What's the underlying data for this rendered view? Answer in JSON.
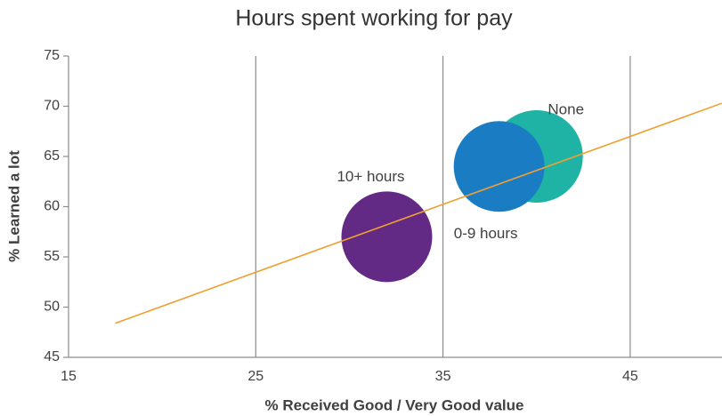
{
  "chart_data": {
    "type": "bubble",
    "title": "Hours spent working for pay",
    "x_label": "% Received Good / Very Good value",
    "y_label": "% Learned a lot",
    "series": [
      {
        "name": "None",
        "color": "#1fb3a5",
        "x": [
          40
        ],
        "values": [
          65
        ],
        "sizes": [
          52
        ]
      },
      {
        "name": "0-9 hours",
        "color": "#1a7dc4",
        "x": [
          38
        ],
        "values": [
          64
        ],
        "sizes": [
          50
        ]
      },
      {
        "name": "10+ hours",
        "color": "#622a85",
        "x": [
          32
        ],
        "values": [
          57
        ],
        "sizes": [
          50
        ]
      }
    ],
    "trendline": {
      "color": "#f0a030",
      "x": [
        17.5,
        49.9
      ],
      "y": [
        48.4,
        70.3
      ]
    },
    "xlim": [
      15,
      50
    ],
    "ylim": [
      45,
      75
    ],
    "xticks": [
      15,
      25,
      35,
      45
    ],
    "yticks": [
      45,
      50,
      55,
      60,
      65,
      70,
      75
    ],
    "grid": true
  }
}
